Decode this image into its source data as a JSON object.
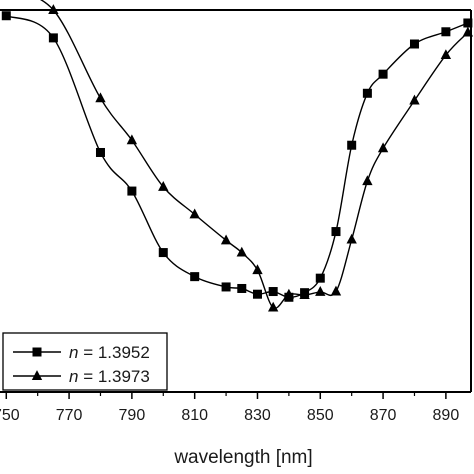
{
  "chart_data": {
    "type": "line",
    "xlabel": "wavelength [nm]",
    "ylabel": "",
    "title": "",
    "xlim": [
      748,
      898
    ],
    "ylim": [
      0,
      1
    ],
    "x_ticks": [
      "750",
      "770",
      "790",
      "810",
      "830",
      "850",
      "870",
      "890"
    ],
    "grid": false,
    "legend_position": "bottom-left",
    "series": [
      {
        "name": "n = 1.3952",
        "name_var": "n",
        "name_value": "= 1.3952",
        "marker": "square",
        "color": "#000000",
        "x": [
          750,
          765,
          780,
          790,
          800,
          810,
          820,
          825,
          830,
          835,
          840,
          845,
          850,
          855,
          860,
          865,
          870,
          880,
          890,
          897
        ],
        "y": [
          0.985,
          0.927,
          0.627,
          0.526,
          0.365,
          0.302,
          0.275,
          0.271,
          0.256,
          0.263,
          0.248,
          0.26,
          0.298,
          0.42,
          0.646,
          0.782,
          0.832,
          0.911,
          0.943,
          0.966
        ]
      },
      {
        "name": "n = 1.3973",
        "name_var": "n",
        "name_value": "= 1.3973",
        "marker": "triangle",
        "color": "#000000",
        "x": [
          750,
          765,
          780,
          790,
          800,
          810,
          820,
          825,
          830,
          835,
          840,
          845,
          850,
          855,
          860,
          865,
          870,
          880,
          890,
          897
        ],
        "y": [
          1.056,
          1.0,
          0.769,
          0.659,
          0.537,
          0.465,
          0.397,
          0.365,
          0.319,
          0.221,
          0.255,
          0.254,
          0.262,
          0.263,
          0.399,
          0.552,
          0.638,
          0.763,
          0.882,
          0.941
        ]
      }
    ]
  }
}
